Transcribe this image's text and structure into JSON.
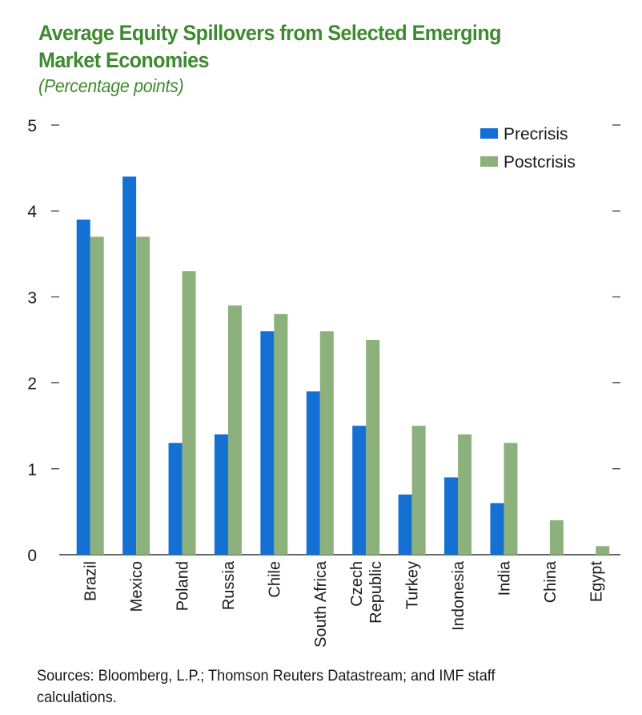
{
  "title": "Average Equity Spillovers from Selected Emerging Market Economies",
  "subtitle": "(Percentage points)",
  "source": "Sources: Bloomberg, L.P.; Thomson Reuters Datastream; and IMF staff calculations.",
  "colors": {
    "title": "#3d8b2e",
    "precrisis": "#1570d4",
    "postcrisis": "#8db17d"
  },
  "chart_data": {
    "type": "bar",
    "title": "Average Equity Spillovers from Selected Emerging Market Economies",
    "subtitle": "(Percentage points)",
    "xlabel": "",
    "ylabel": "",
    "ylim": [
      0,
      5
    ],
    "yticks": [
      "0",
      "1",
      "2",
      "3",
      "4",
      "5"
    ],
    "legend_position": "top-right",
    "categories": [
      [
        "Brazil"
      ],
      [
        "Mexico"
      ],
      [
        "Poland"
      ],
      [
        "Russia"
      ],
      [
        "Chile"
      ],
      [
        "South Africa"
      ],
      [
        "Czech",
        "Republic"
      ],
      [
        "Turkey"
      ],
      [
        "Indonesia"
      ],
      [
        "India"
      ],
      [
        "China"
      ],
      [
        "Egypt"
      ]
    ],
    "series": [
      {
        "name": "Precrisis",
        "color": "#1570d4",
        "values": [
          3.9,
          4.4,
          1.3,
          1.4,
          2.6,
          1.9,
          1.5,
          0.7,
          0.9,
          0.6,
          null,
          null
        ]
      },
      {
        "name": "Postcrisis",
        "color": "#8db17d",
        "values": [
          3.7,
          3.7,
          3.3,
          2.9,
          2.8,
          2.6,
          2.5,
          1.5,
          1.4,
          1.3,
          0.4,
          0.1
        ]
      }
    ]
  }
}
